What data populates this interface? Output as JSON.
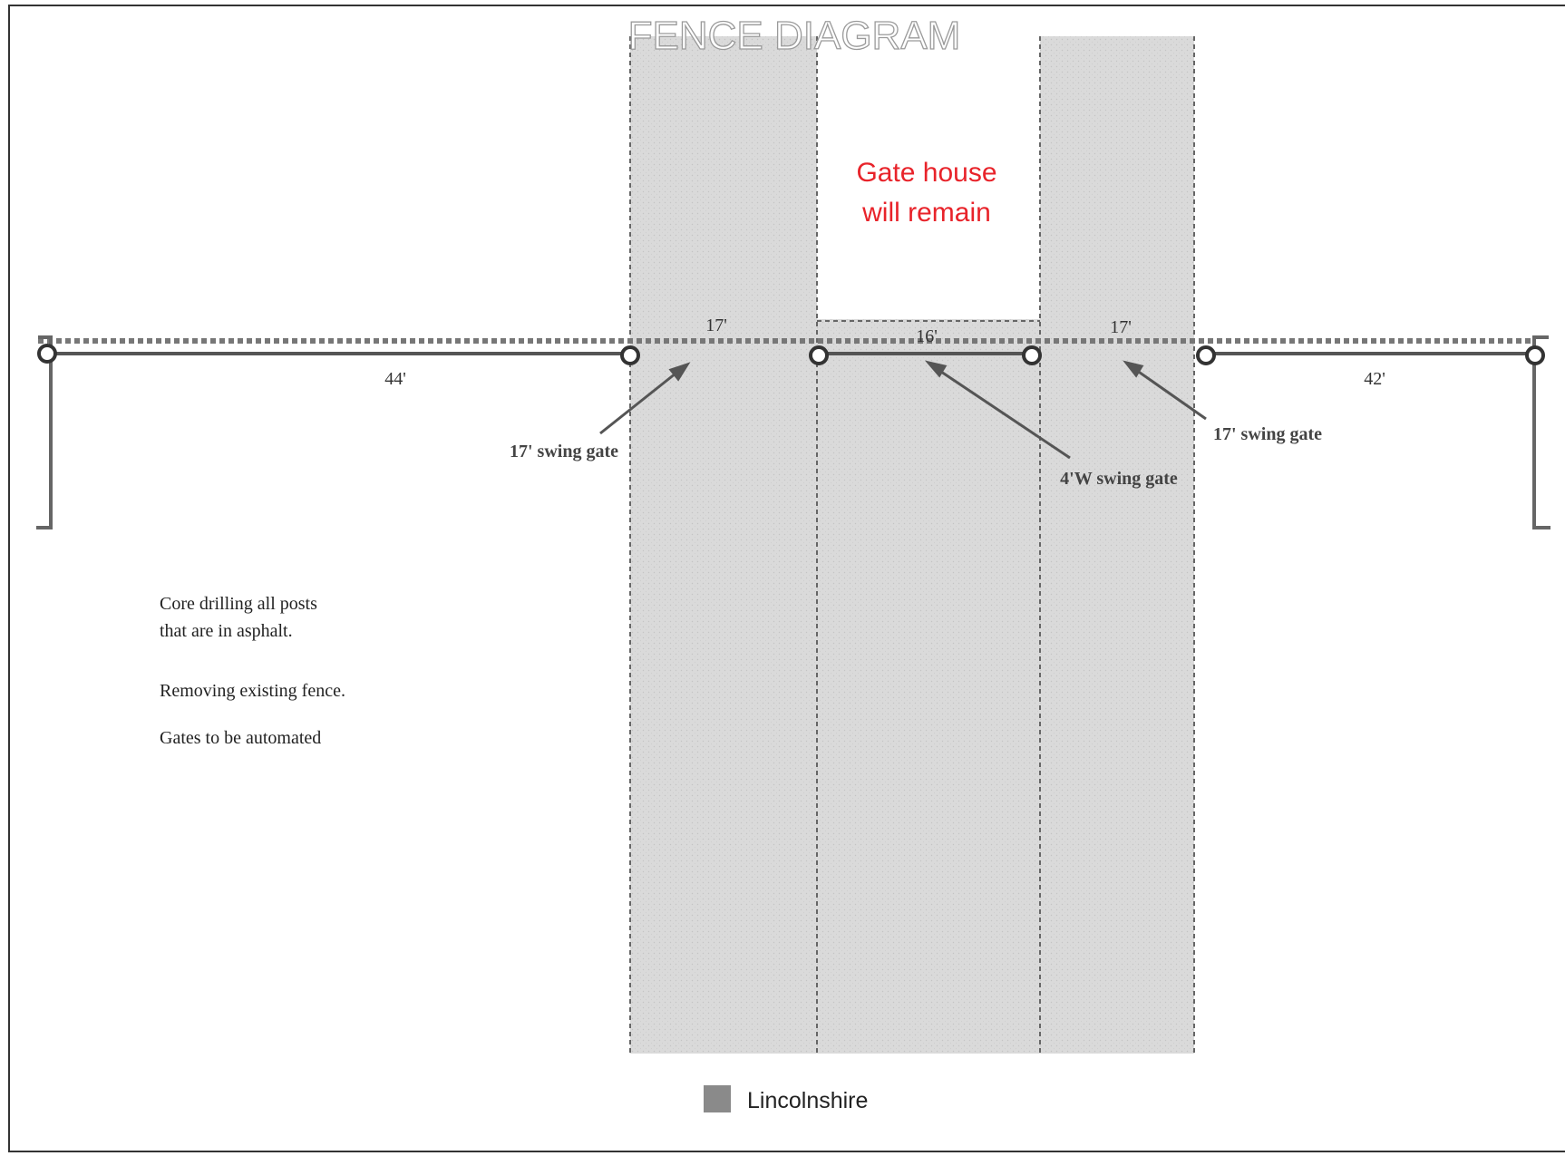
{
  "title": "FENCE DIAGRAM",
  "gate_house_note": {
    "line1": "Gate house",
    "line2": "will remain"
  },
  "dimensions": {
    "left_run": "44'",
    "left_gate": "17'",
    "center": "16'",
    "right_gate": "17'",
    "right_run": "42'"
  },
  "callouts": {
    "left_swing_gate": "17' swing gate",
    "walk_gate": "4'W swing gate",
    "right_swing_gate": "17' swing gate"
  },
  "notes": [
    "Core drilling all posts",
    "that are in asphalt.",
    "Removing existing fence.",
    "Gates to be automated"
  ],
  "legend": {
    "label": "Lincolnshire",
    "swatch_color": "#8a8a8a"
  },
  "colors": {
    "road_fill": "#d9d9d9",
    "note_red": "#e8232a",
    "line": "#555555",
    "title_gray": "#9a9a9a"
  }
}
